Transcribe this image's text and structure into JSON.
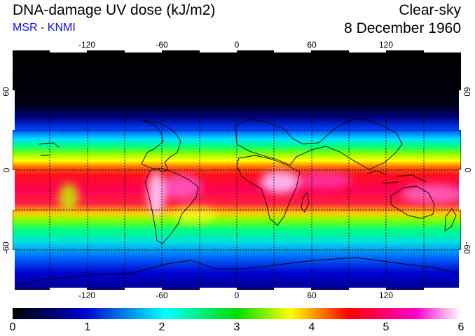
{
  "header": {
    "title": "DNA-damage UV dose (kJ/m2)",
    "source": "MSR - KNMI",
    "sky_type": "Clear-sky",
    "date": "8 December 1960"
  },
  "map": {
    "lon_ticks_top": [
      "-120",
      "-60",
      "0",
      "60",
      "120"
    ],
    "lon_ticks_bottom": [
      "-120",
      "-60",
      "0",
      "60",
      "120"
    ],
    "lat_ticks_left": [
      "60",
      "0",
      "-60"
    ],
    "lat_ticks_right": [
      "60",
      "0",
      "-60"
    ],
    "lon_values": [
      -120,
      -60,
      0,
      60,
      120
    ],
    "lat_values": [
      60,
      0,
      -60
    ],
    "lon_range": [
      -180,
      180
    ],
    "lat_range": [
      -90,
      90
    ]
  },
  "colorbar": {
    "labels": [
      "0",
      "1",
      "2",
      "3",
      "4",
      "5",
      "6"
    ],
    "values": [
      0,
      1,
      2,
      3,
      4,
      5,
      6
    ],
    "range": [
      0,
      6
    ],
    "colors": [
      "#000000",
      "#0000cc",
      "#00ffff",
      "#00dd00",
      "#ffff00",
      "#ff0000",
      "#ff00cc",
      "#ffffff"
    ]
  }
}
